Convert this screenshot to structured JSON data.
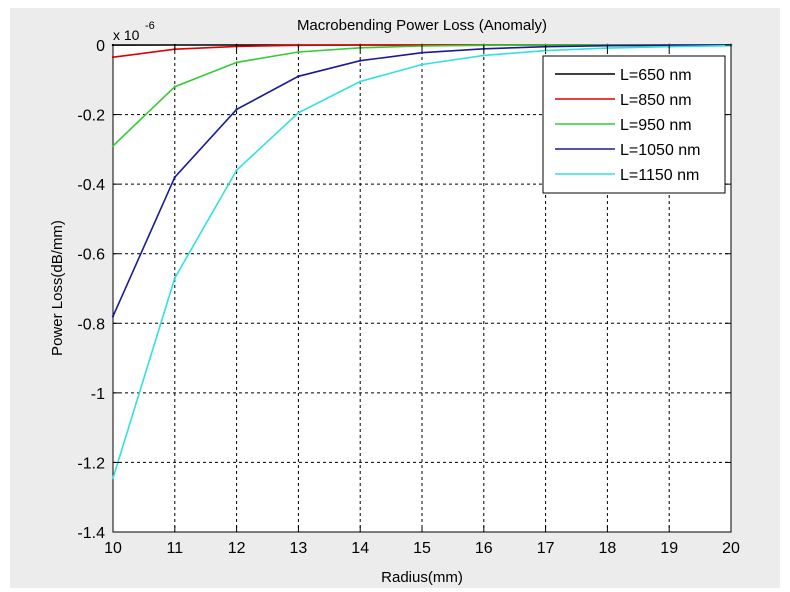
{
  "figure": {
    "background": "#ececec"
  },
  "chart_data": {
    "type": "line",
    "title": "Macrobending Power Loss (Anomaly)",
    "xlabel": "Radius(mm)",
    "ylabel": "Power Loss(dB/mm)",
    "exponent_base": "x 10",
    "exponent_power": "-6",
    "xlim": [
      10,
      20
    ],
    "ylim": [
      -1.4,
      0
    ],
    "x_ticks": [
      "10",
      "11",
      "12",
      "13",
      "14",
      "15",
      "16",
      "17",
      "18",
      "19",
      "20"
    ],
    "y_ticks": [
      "0",
      "-0.2",
      "-0.4",
      "-0.6",
      "-0.8",
      "-1",
      "-1.2",
      "-1.4"
    ],
    "grid": true,
    "legend_position": "top-right",
    "x": [
      10,
      11,
      12,
      13,
      14,
      15,
      16,
      17,
      18,
      19,
      20
    ],
    "series": [
      {
        "name": "L=650 nm",
        "color": "#000000",
        "values": [
          -0.0002,
          -0.0001,
          0,
          0,
          0,
          0,
          0,
          0,
          0,
          0,
          0
        ]
      },
      {
        "name": "L=850 nm",
        "color": "#e00000",
        "values": [
          -0.035,
          -0.012,
          -0.004,
          -0.001,
          0,
          0,
          0,
          0,
          0,
          0,
          0
        ]
      },
      {
        "name": "L=950 nm",
        "color": "#33cc33",
        "values": [
          -0.29,
          -0.12,
          -0.05,
          -0.02,
          -0.008,
          -0.003,
          -0.001,
          0,
          0,
          0,
          0
        ]
      },
      {
        "name": "L=1050 nm",
        "color": "#1a1a99",
        "values": [
          -0.78,
          -0.38,
          -0.185,
          -0.09,
          -0.045,
          -0.022,
          -0.011,
          -0.005,
          -0.002,
          -0.001,
          0
        ]
      },
      {
        "name": "L=1150 nm",
        "color": "#33e0e0",
        "values": [
          -1.245,
          -0.67,
          -0.36,
          -0.195,
          -0.105,
          -0.056,
          -0.03,
          -0.016,
          -0.009,
          -0.005,
          -0.002
        ]
      }
    ]
  }
}
